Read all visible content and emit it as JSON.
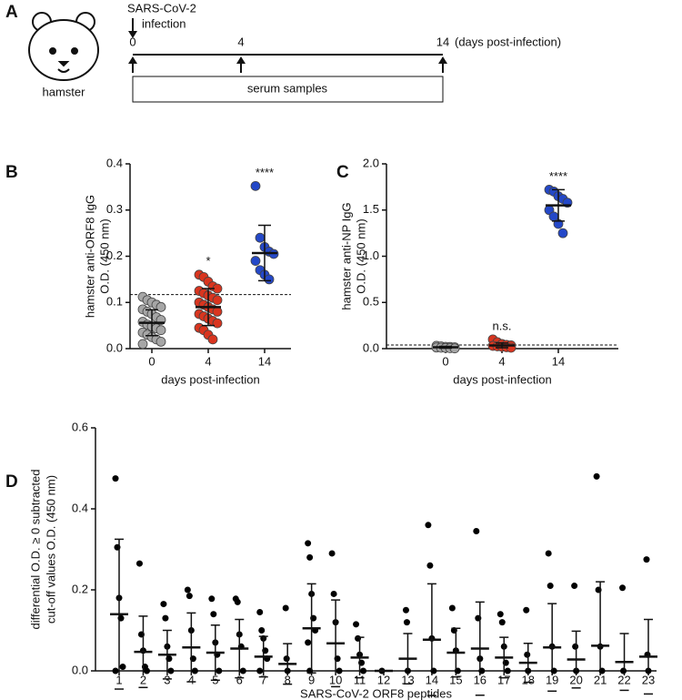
{
  "timeline": {
    "panel_label": "A",
    "event_line1": "SARS-CoV-2",
    "event_line2": "infection",
    "days": [
      0,
      4,
      14
    ],
    "unit": "(days post-infection)",
    "animal": "hamster",
    "box_label": "serum samples"
  },
  "chart_data": [
    {
      "type": "dot",
      "panel_label": "B",
      "ylabel": [
        "hamster anti-ORF8 IgG",
        "O.D. (450 nm)"
      ],
      "xlabel": "days post-infection",
      "categories": [
        "0",
        "4",
        "14"
      ],
      "colors": [
        "#a6a6a6",
        "#d9351f",
        "#2448c8"
      ],
      "points": [
        [
          0.112,
          0.105,
          0.1,
          0.095,
          0.09,
          0.085,
          0.08,
          0.075,
          0.068,
          0.062,
          0.058,
          0.052,
          0.048,
          0.044,
          0.04,
          0.035,
          0.03,
          0.025,
          0.02,
          0.015,
          0.01
        ],
        [
          0.16,
          0.155,
          0.145,
          0.135,
          0.13,
          0.125,
          0.12,
          0.115,
          0.11,
          0.105,
          0.1,
          0.095,
          0.09,
          0.085,
          0.08,
          0.075,
          0.07,
          0.065,
          0.06,
          0.055,
          0.045,
          0.04,
          0.03,
          0.02
        ],
        [
          0.352,
          0.24,
          0.22,
          0.21,
          0.205,
          0.19,
          0.17,
          0.16,
          0.15
        ]
      ],
      "means": [
        0.056,
        0.09,
        0.207
      ],
      "sds": [
        0.028,
        0.04,
        0.06
      ],
      "cutoff": 0.117,
      "significance": [
        null,
        "*",
        "****"
      ],
      "ylim": [
        0,
        0.4
      ],
      "yticks": [
        {
          "value": 0,
          "label": "0.0"
        },
        0.1,
        0.2,
        0.3,
        0.4
      ]
    },
    {
      "type": "dot",
      "panel_label": "C",
      "ylabel": [
        "hamster anti-NP IgG",
        "O.D. (450 nm)"
      ],
      "xlabel": "days post-infection",
      "categories": [
        "0",
        "4",
        "14"
      ],
      "colors": [
        "#a6a6a6",
        "#d9351f",
        "#2448c8"
      ],
      "points": [
        [
          0.03,
          0.025,
          0.02,
          0.018,
          0.015,
          0.012,
          0.01,
          0.008,
          0.005,
          0.003
        ],
        [
          0.1,
          0.07,
          0.05,
          0.04,
          0.035,
          0.03,
          0.025,
          0.02,
          0.015,
          0.01
        ],
        [
          1.72,
          1.7,
          1.65,
          1.62,
          1.58,
          1.5,
          1.43,
          1.35,
          1.25
        ]
      ],
      "means": [
        0.015,
        0.035,
        1.55
      ],
      "sds": [
        0.01,
        0.025,
        0.17
      ],
      "cutoff": 0.04,
      "significance": [
        null,
        "n.s.",
        "****"
      ],
      "ylim": [
        0,
        2
      ],
      "yticks": [
        {
          "value": 0,
          "label": "0.0"
        },
        0.5,
        {
          "value": 1,
          "label": "1.0"
        },
        1.5,
        {
          "value": 2,
          "label": "2.0"
        }
      ]
    },
    {
      "type": "dot",
      "panel_label": "D",
      "ylabel": [
        "differential O.D. ≥ 0 subtracted",
        "cut-off values O.D. (450 nm)"
      ],
      "xlabel": "SARS-CoV-2 ORF8 peptides",
      "categories": [
        "1",
        "2",
        "3",
        "4",
        "5",
        "6",
        "7",
        "8",
        "9",
        "10",
        "11",
        "12",
        "13",
        "14",
        "15",
        "16",
        "17",
        "18",
        "19",
        "20",
        "21",
        "22",
        "23"
      ],
      "colors": [
        "#000000"
      ],
      "points": [
        [
          0.475,
          0.305,
          0.18,
          0.13,
          0.01,
          0
        ],
        [
          0.265,
          0.09,
          0.05,
          0.01,
          0
        ],
        [
          0.165,
          0.13,
          0.06,
          0.03,
          0
        ],
        [
          0.2,
          0.185,
          0.1,
          0.03,
          0
        ],
        [
          0.178,
          0.14,
          0.07,
          0.04,
          0
        ],
        [
          0.178,
          0.17,
          0.09,
          0.06,
          0
        ],
        [
          0.145,
          0.1,
          0.08,
          0.05,
          0.03,
          0
        ],
        [
          0.155,
          0.03,
          0
        ],
        [
          0.315,
          0.28,
          0.19,
          0.13,
          0.1,
          0.07,
          0
        ],
        [
          0.29,
          0.19,
          0.12,
          0.03,
          0
        ],
        [
          0.115,
          0.08,
          0.04,
          0.02,
          0
        ],
        [
          0
        ],
        [
          0.15,
          0.12,
          0
        ],
        [
          0.36,
          0.26,
          0.08,
          0
        ],
        [
          0.155,
          0.1,
          0.05,
          0
        ],
        [
          0.345,
          0.13,
          0.03,
          0
        ],
        [
          0.14,
          0.12,
          0.06,
          0.02,
          0
        ],
        [
          0.15,
          0.04,
          0
        ],
        [
          0.29,
          0.21,
          0.06,
          0
        ],
        [
          0.21,
          0.06,
          0
        ],
        [
          0.48,
          0.2,
          0.06,
          0
        ],
        [
          0.205,
          0
        ],
        [
          0.275,
          0.04,
          0
        ]
      ],
      "means": [
        0.14,
        0.047,
        0.04,
        0.058,
        0.045,
        0.055,
        0.035,
        0.017,
        0.105,
        0.068,
        0.033,
        0,
        0.03,
        0.077,
        0.045,
        0.055,
        0.033,
        0.02,
        0.058,
        0.028,
        0.062,
        0.022,
        0.035
      ],
      "sds": [
        0.185,
        0.088,
        0.06,
        0.085,
        0.068,
        0.072,
        0.05,
        0.05,
        0.11,
        0.107,
        0.05,
        0,
        0.062,
        0.138,
        0.06,
        0.115,
        0.05,
        0.048,
        0.108,
        0.07,
        0.158,
        0.07,
        0.092
      ],
      "ylim": [
        0,
        0.6
      ],
      "yticks": [
        {
          "value": 0,
          "label": "0.0"
        },
        0.2,
        0.4,
        0.6
      ]
    }
  ]
}
